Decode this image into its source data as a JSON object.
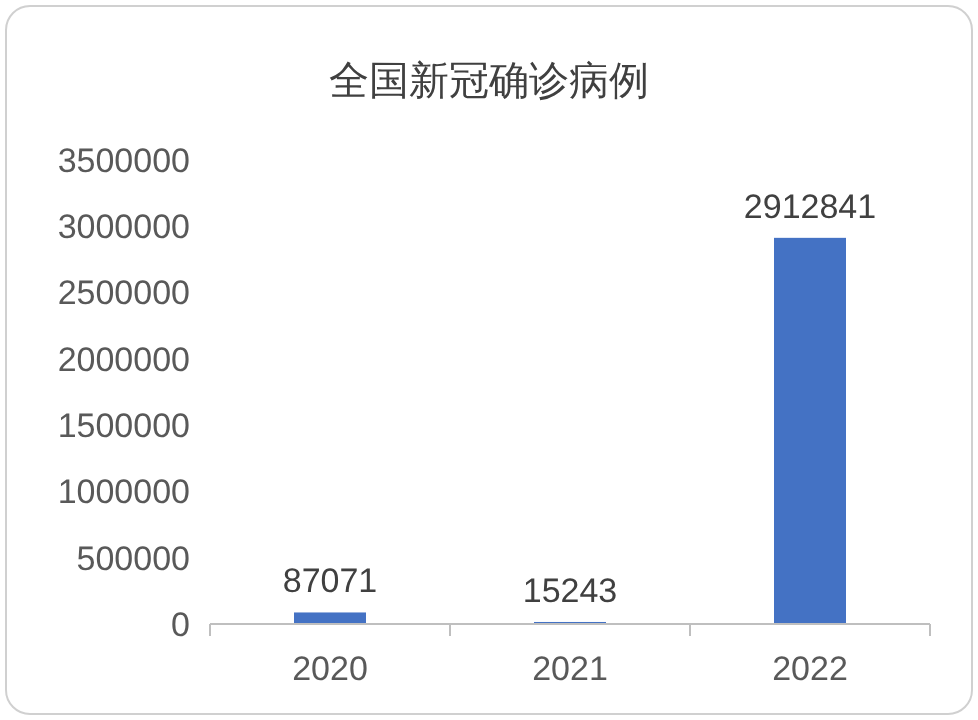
{
  "chart_data": {
    "type": "bar",
    "title": "全国新冠确诊病例",
    "categories": [
      "2020",
      "2021",
      "2022"
    ],
    "values": [
      87071,
      15243,
      2912841
    ],
    "color": "#4472c4",
    "ylim": [
      0,
      3500000
    ],
    "yticks": [
      0,
      500000,
      1000000,
      1500000,
      2000000,
      2500000,
      3000000,
      3500000
    ],
    "data_labels": true
  }
}
